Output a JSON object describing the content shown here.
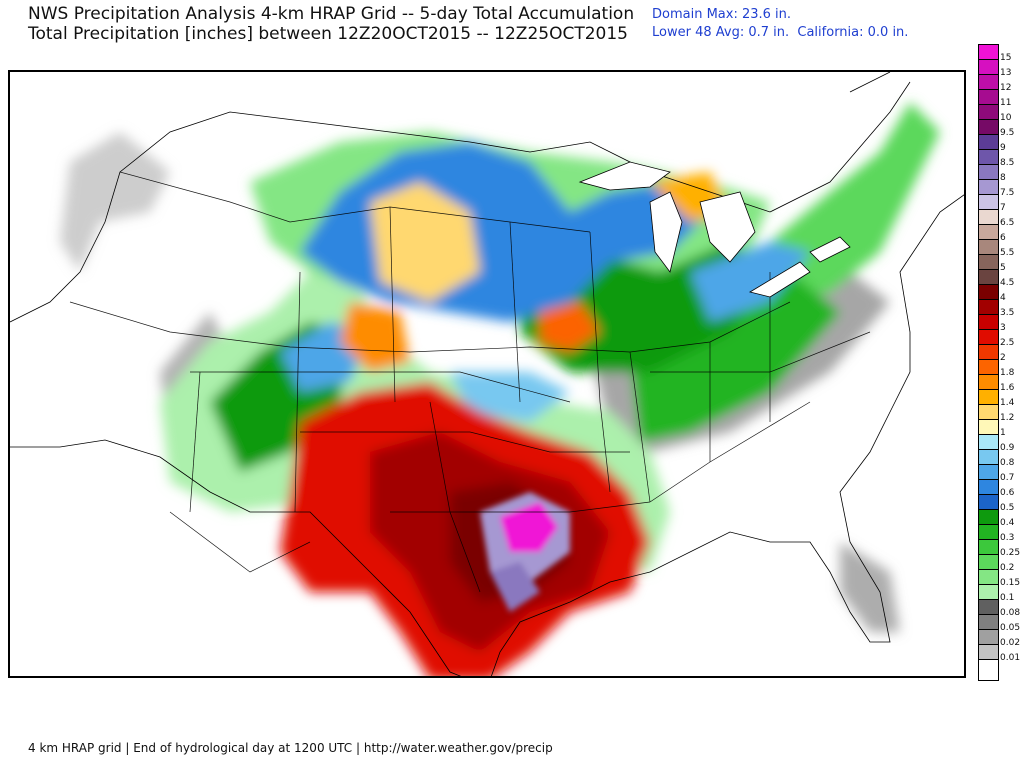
{
  "header": {
    "title_line1": "NWS Precipitation Analysis 4-km HRAP Grid -- 5-day Total Accumulation",
    "title_line2": "Total Precipitation [inches] between 12Z20OCT2015 -- 12Z25OCT2015",
    "domain_max": "Domain Max: 23.6 in.",
    "averages": "Lower 48 Avg: 0.7 in.  California: 0.0 in."
  },
  "footer": {
    "text": "4 km HRAP grid | End of hydrological day at 1200 UTC | http://water.weather.gov/precip"
  },
  "legend": {
    "items": [
      {
        "label": "15",
        "color": "#f012d6"
      },
      {
        "label": "13",
        "color": "#d610c0"
      },
      {
        "label": "12",
        "color": "#be0ea8"
      },
      {
        "label": "11",
        "color": "#a60c90"
      },
      {
        "label": "10",
        "color": "#8e0a7a"
      },
      {
        "label": "9.5",
        "color": "#760a66"
      },
      {
        "label": "9",
        "color": "#5c3c96"
      },
      {
        "label": "8.5",
        "color": "#6e56aa"
      },
      {
        "label": "8",
        "color": "#8a78bf"
      },
      {
        "label": "7.5",
        "color": "#a698d2"
      },
      {
        "label": "7",
        "color": "#ccc4e6"
      },
      {
        "label": "6.5",
        "color": "#ead8d0"
      },
      {
        "label": "6",
        "color": "#c8a89c"
      },
      {
        "label": "5.5",
        "color": "#a8877c"
      },
      {
        "label": "5",
        "color": "#87655c"
      },
      {
        "label": "4.5",
        "color": "#6a4440"
      },
      {
        "label": "4",
        "color": "#7a0000"
      },
      {
        "label": "3.5",
        "color": "#a20000"
      },
      {
        "label": "3",
        "color": "#c80000"
      },
      {
        "label": "2.5",
        "color": "#e00c00"
      },
      {
        "label": "2",
        "color": "#f03800"
      },
      {
        "label": "1.8",
        "color": "#fc6400"
      },
      {
        "label": "1.6",
        "color": "#fe8c00"
      },
      {
        "label": "1.4",
        "color": "#ffb000"
      },
      {
        "label": "1.2",
        "color": "#ffd870"
      },
      {
        "label": "1",
        "color": "#fff8b8"
      },
      {
        "label": "0.9",
        "color": "#aae8f8"
      },
      {
        "label": "0.8",
        "color": "#78c8f0"
      },
      {
        "label": "0.7",
        "color": "#4ea6e8"
      },
      {
        "label": "0.6",
        "color": "#2e86e0"
      },
      {
        "label": "0.5",
        "color": "#1c64c8"
      },
      {
        "label": "0.4",
        "color": "#0e9a0e"
      },
      {
        "label": "0.3",
        "color": "#22b422"
      },
      {
        "label": "0.25",
        "color": "#3cc83c"
      },
      {
        "label": "0.2",
        "color": "#5cd85c"
      },
      {
        "label": "0.15",
        "color": "#84e684"
      },
      {
        "label": "0.1",
        "color": "#acf0ac"
      },
      {
        "label": "0.08",
        "color": "#606060"
      },
      {
        "label": "0.05",
        "color": "#808080"
      },
      {
        "label": "0.02",
        "color": "#a0a0a0"
      },
      {
        "label": "0.01",
        "color": "#c4c4c4"
      },
      {
        "label": "",
        "color": "#ffffff"
      }
    ]
  }
}
